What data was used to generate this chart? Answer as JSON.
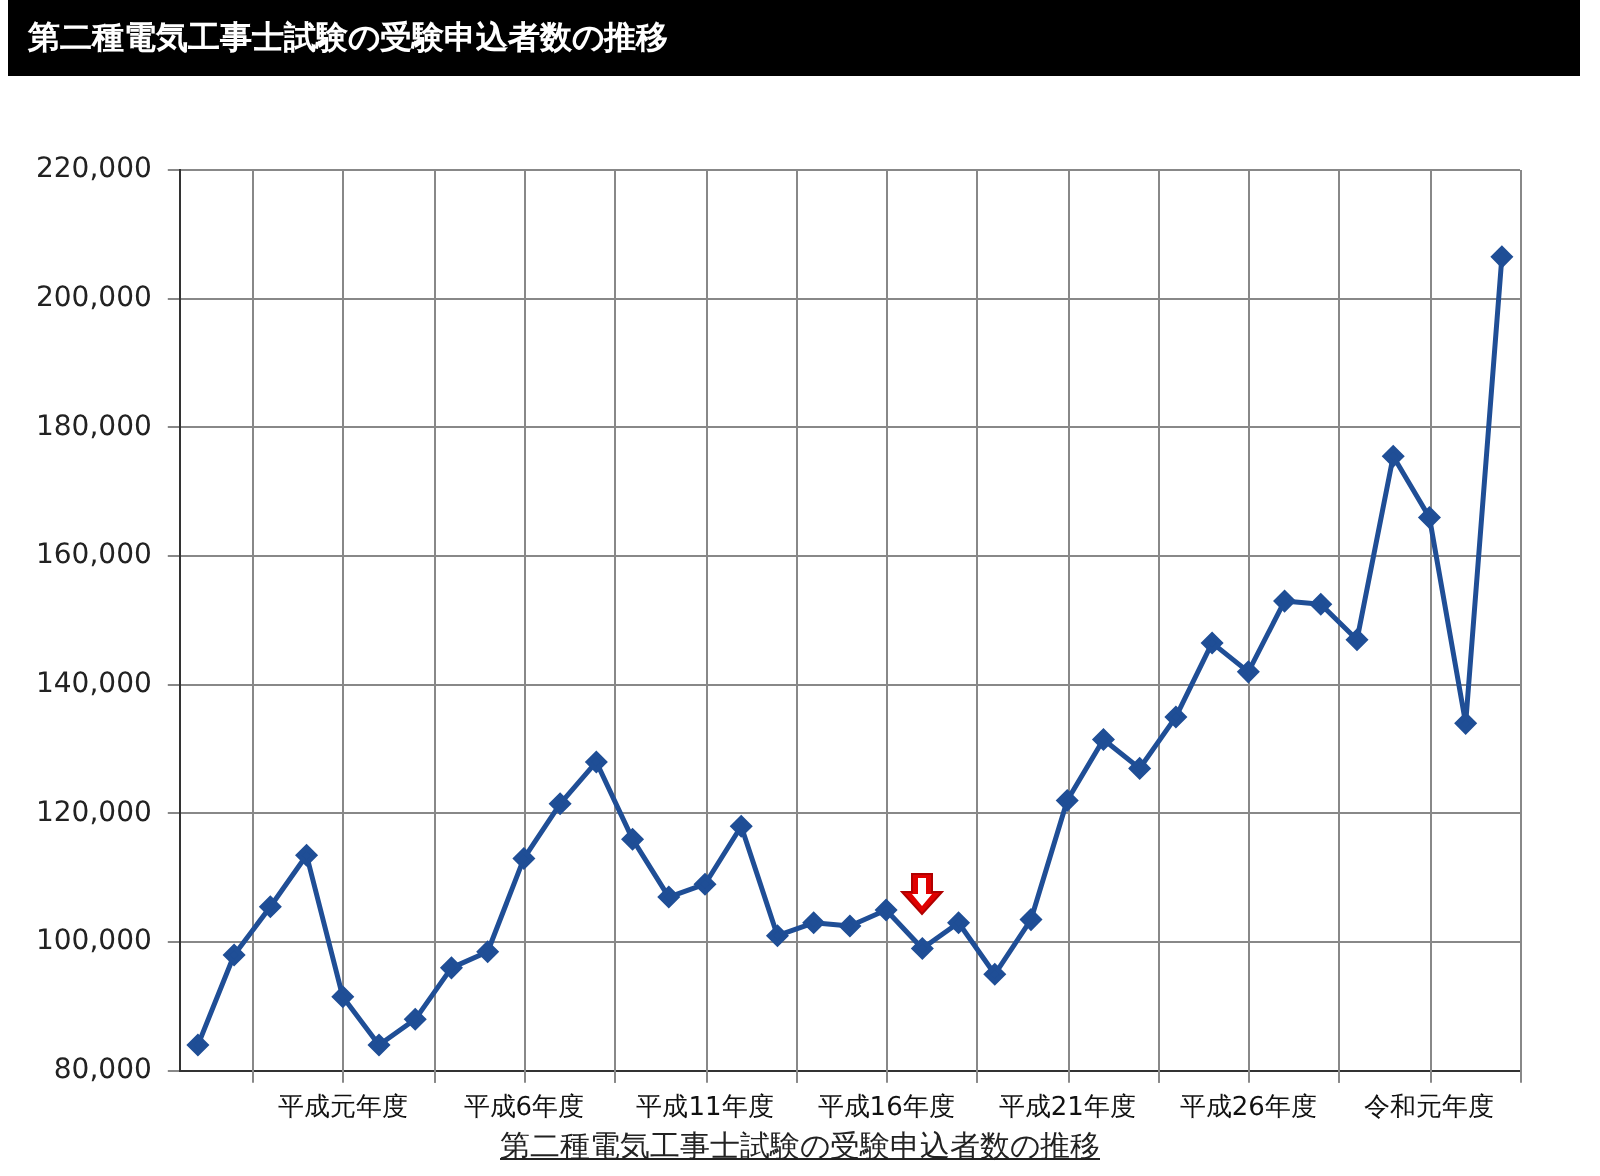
{
  "chart_data": {
    "type": "line",
    "title": "第二種電気工事士試験の受験申込者数の推移",
    "xlabel": "第二種電気工事士試験の受験申込者数の推移",
    "categories": [
      null,
      null,
      null,
      null,
      "平成元年度",
      null,
      null,
      null,
      null,
      "平成6年度",
      null,
      null,
      null,
      null,
      "平成11年度",
      null,
      null,
      null,
      null,
      "平成16年度",
      null,
      null,
      null,
      null,
      "平成21年度",
      null,
      null,
      null,
      null,
      "平成26年度",
      null,
      null,
      null,
      null,
      "令和元年度",
      null,
      null
    ],
    "series": [
      {
        "color": "#1f4e96",
        "values": [
          84000,
          98000,
          105500,
          113500,
          91500,
          84000,
          88000,
          96000,
          98500,
          113000,
          121500,
          128000,
          116000,
          107000,
          109000,
          118000,
          101000,
          103000,
          102500,
          105000,
          99000,
          103000,
          95000,
          103500,
          122000,
          131500,
          127000,
          135000,
          146500,
          142000,
          153000,
          152500,
          147000,
          175500,
          166000,
          134000,
          206500
        ]
      }
    ],
    "ylim": [
      80000,
      220000
    ],
    "yticks": [
      {
        "value": 80000,
        "label": "80,000"
      },
      {
        "value": 100000,
        "label": "100,000"
      },
      {
        "value": 120000,
        "label": "120,000"
      },
      {
        "value": 140000,
        "label": "140,000"
      },
      {
        "value": 160000,
        "label": "160,000"
      },
      {
        "value": 180000,
        "label": "180,000"
      },
      {
        "value": 200000,
        "label": "200,000"
      },
      {
        "value": 220000,
        "label": "220,000"
      }
    ],
    "grid": true,
    "marker": "diamond",
    "line_style": "solid",
    "legend": false
  }
}
